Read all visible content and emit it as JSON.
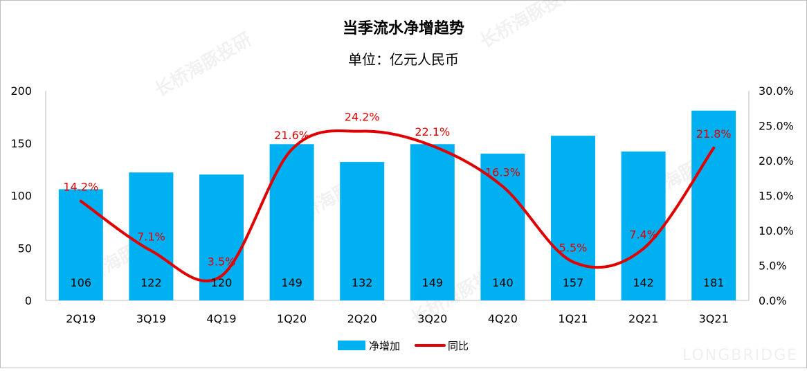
{
  "chart_data": {
    "type": "bar",
    "title": "当季流水净增趋势",
    "subtitle": "单位：亿元人民币",
    "categories": [
      "2Q19",
      "3Q19",
      "4Q19",
      "1Q20",
      "2Q20",
      "3Q20",
      "4Q20",
      "1Q21",
      "2Q21",
      "3Q21"
    ],
    "series": [
      {
        "name": "净增加",
        "type": "bar",
        "axis": "left",
        "values": [
          106,
          122,
          120,
          149,
          132,
          149,
          140,
          157,
          142,
          181
        ]
      },
      {
        "name": "同比",
        "type": "line",
        "axis": "right",
        "values": [
          14.2,
          7.1,
          3.5,
          21.6,
          24.2,
          22.1,
          16.3,
          5.5,
          7.4,
          21.8
        ]
      }
    ],
    "bar_labels": [
      "106",
      "122",
      "120",
      "149",
      "132",
      "149",
      "140",
      "157",
      "142",
      "181"
    ],
    "line_labels": [
      "14.2%",
      "7.1%",
      "3.5%",
      "21.6%",
      "24.2%",
      "22.1%",
      "16.3%",
      "5.5%",
      "7.4%",
      "21.8%"
    ],
    "y_left": {
      "min": 0,
      "max": 200,
      "ticks": [
        "0",
        "50",
        "100",
        "150",
        "200"
      ]
    },
    "y_right": {
      "min": 0,
      "max": 30,
      "ticks": [
        "0.0%",
        "5.0%",
        "10.0%",
        "15.0%",
        "20.0%",
        "25.0%",
        "30.0%"
      ]
    },
    "grid": false,
    "smooth_line": true,
    "legend": {
      "position": "bottom",
      "items": [
        "净增加",
        "同比"
      ]
    },
    "colors": {
      "bar": "#00B0F0",
      "line": "#E00000",
      "line_label": "#E00000"
    }
  },
  "watermark": {
    "text": "长桥海豚投研",
    "latin": "LONGBRIDGE"
  }
}
